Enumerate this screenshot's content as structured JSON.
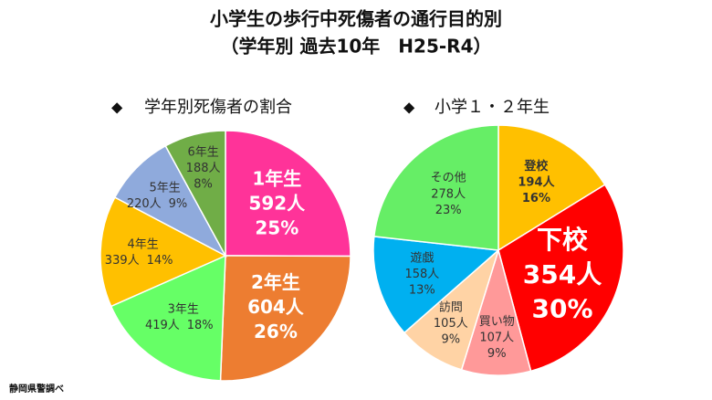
{
  "title": "小学生の歩行中死傷者の通行目的別",
  "subtitle": "（学年別 過去10年　H25-R4）",
  "source": "静岡県警調べ",
  "chart_data": [
    {
      "type": "pie",
      "title": "学年別死傷者の割合",
      "categories": [
        "1年生",
        "2年生",
        "3年生",
        "4年生",
        "5年生",
        "6年生"
      ],
      "values": [
        592,
        604,
        419,
        339,
        220,
        188
      ],
      "value_labels": [
        "592人",
        "604人",
        "419人",
        "339人",
        "220人",
        "188人"
      ],
      "percent_labels": [
        "25%",
        "26%",
        "18%",
        "14%",
        "9%",
        "8%"
      ],
      "colors": [
        "#ff3399",
        "#ed7d31",
        "#66ff66",
        "#ffc000",
        "#8faadc",
        "#70ad47"
      ]
    },
    {
      "type": "pie",
      "title": "小学１・２年生",
      "categories": [
        "登校",
        "下校",
        "買い物",
        "訪問",
        "遊戯",
        "その他"
      ],
      "values": [
        194,
        354,
        107,
        105,
        158,
        278
      ],
      "value_labels": [
        "194人",
        "354人",
        "107人",
        "105人",
        "158人",
        "278人"
      ],
      "percent_labels": [
        "16%",
        "30%",
        "9%",
        "9%",
        "13%",
        "23%"
      ],
      "colors": [
        "#ffc000",
        "#ff0000",
        "#ff9999",
        "#ffd3a5",
        "#00b0f0",
        "#66ee66"
      ]
    }
  ]
}
